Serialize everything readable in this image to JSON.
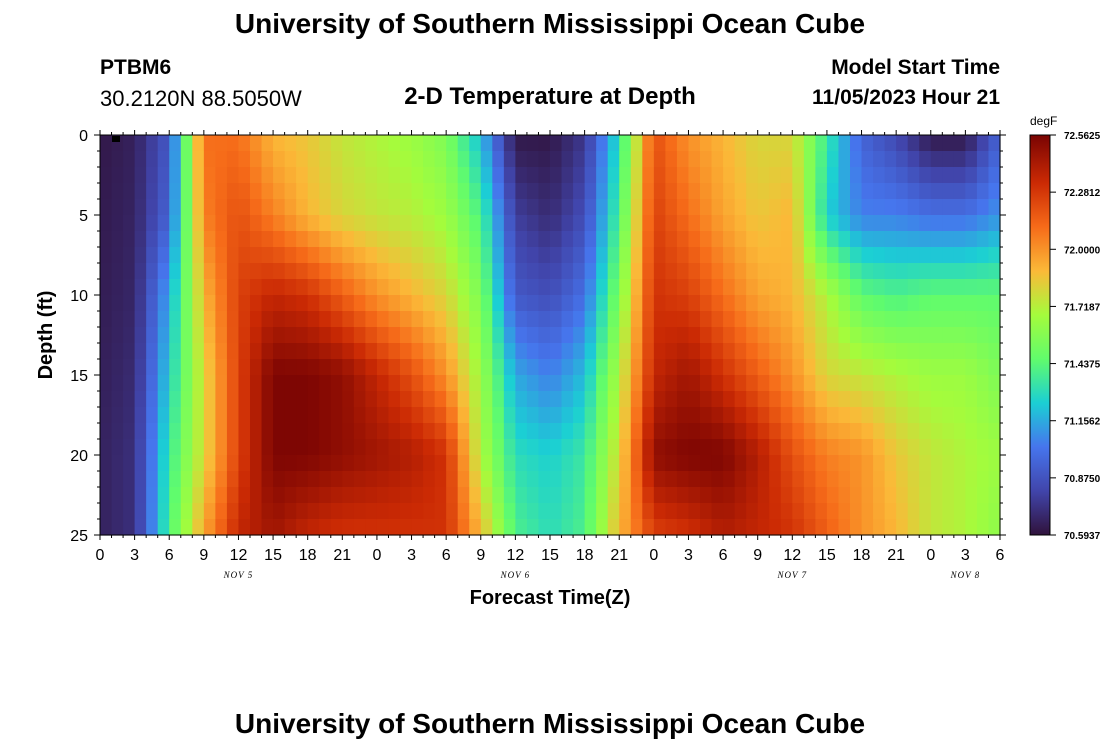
{
  "header": {
    "title": "University of Southern Mississippi Ocean Cube",
    "station_id": "PTBM6",
    "station_coords": "30.2120N  88.5050W",
    "plot_title": "2-D Temperature at Depth",
    "model_start_label": "Model Start Time",
    "model_start_time": "11/05/2023 Hour 21"
  },
  "footer": {
    "title": "University of Southern Mississippi Ocean Cube"
  },
  "chart_data": {
    "type": "heatmap",
    "title": "2-D Temperature at Depth",
    "xlabel": "Forecast Time(Z)",
    "ylabel": "Depth (ft)",
    "x_hours_since_start": [
      0,
      78
    ],
    "ylim": [
      0,
      25
    ],
    "x_tick_labels": [
      "0",
      "3",
      "6",
      "9",
      "12",
      "15",
      "18",
      "21",
      "0",
      "3",
      "6",
      "9",
      "12",
      "15",
      "18",
      "21",
      "0",
      "3",
      "6",
      "9",
      "12",
      "15",
      "18",
      "21",
      "0",
      "3",
      "6"
    ],
    "y_tick_labels": [
      "0",
      "5",
      "10",
      "15",
      "20",
      "25"
    ],
    "date_labels": [
      {
        "text": "NOV 5",
        "hour": 12
      },
      {
        "text": "NOV 6",
        "hour": 36
      },
      {
        "text": "NOV 7",
        "hour": 60
      },
      {
        "text": "NOV 8",
        "hour": 75
      }
    ],
    "colorbar": {
      "unit": "degF",
      "min": 70.5937,
      "max": 72.5625,
      "labels": [
        "72.5625",
        "72.2812",
        "72.0000",
        "71.7187",
        "71.4375",
        "71.1562",
        "70.8750",
        "70.5937"
      ]
    },
    "grid": {
      "x_hours": [
        0,
        3,
        6,
        9,
        12,
        15,
        18,
        21,
        24,
        27,
        30,
        33,
        36,
        39,
        42,
        45,
        48,
        51,
        54,
        57,
        60,
        63,
        66,
        69,
        72,
        75,
        78
      ],
      "depth_ft": [
        0,
        5,
        10,
        15,
        20,
        25
      ],
      "temperature_degF": [
        [
          70.62,
          70.66,
          70.9,
          72.1,
          72.1,
          71.9,
          71.85,
          71.75,
          71.7,
          71.65,
          71.55,
          71.2,
          70.62,
          70.62,
          70.75,
          71.3,
          72.2,
          72.0,
          71.9,
          71.8,
          71.8,
          71.35,
          70.95,
          70.82,
          70.62,
          70.62,
          70.95
        ],
        [
          70.63,
          70.67,
          70.95,
          72.05,
          72.2,
          72.05,
          71.9,
          71.8,
          71.75,
          71.72,
          71.65,
          71.4,
          70.78,
          70.7,
          70.85,
          71.4,
          72.25,
          72.1,
          71.95,
          71.85,
          71.9,
          71.25,
          71.05,
          71.05,
          71.0,
          71.0,
          71.1
        ],
        [
          70.64,
          70.68,
          71.15,
          71.9,
          72.25,
          72.35,
          72.3,
          72.15,
          72.0,
          71.9,
          71.8,
          71.55,
          70.9,
          70.85,
          71.0,
          71.55,
          72.3,
          72.25,
          72.1,
          71.95,
          71.9,
          71.7,
          71.45,
          71.4,
          71.45,
          71.45,
          71.45
        ],
        [
          70.65,
          70.7,
          71.25,
          71.8,
          72.25,
          72.55,
          72.55,
          72.5,
          72.35,
          72.2,
          72.0,
          71.65,
          71.15,
          71.05,
          71.2,
          71.7,
          72.35,
          72.45,
          72.3,
          72.15,
          72.0,
          71.8,
          71.75,
          71.7,
          71.65,
          71.65,
          71.55
        ],
        [
          70.66,
          70.72,
          71.35,
          71.8,
          72.25,
          72.55,
          72.55,
          72.5,
          72.45,
          72.4,
          72.3,
          71.7,
          71.3,
          71.25,
          71.35,
          71.8,
          72.5,
          72.55,
          72.55,
          72.4,
          72.2,
          72.05,
          72.0,
          71.85,
          71.75,
          71.7,
          71.65
        ],
        [
          70.66,
          70.72,
          71.4,
          71.95,
          72.35,
          72.45,
          72.35,
          72.3,
          72.3,
          72.3,
          72.3,
          71.9,
          71.4,
          71.3,
          71.4,
          71.9,
          72.25,
          72.3,
          72.4,
          72.35,
          72.3,
          72.15,
          72.0,
          71.9,
          71.75,
          71.7,
          71.6
        ]
      ]
    }
  }
}
